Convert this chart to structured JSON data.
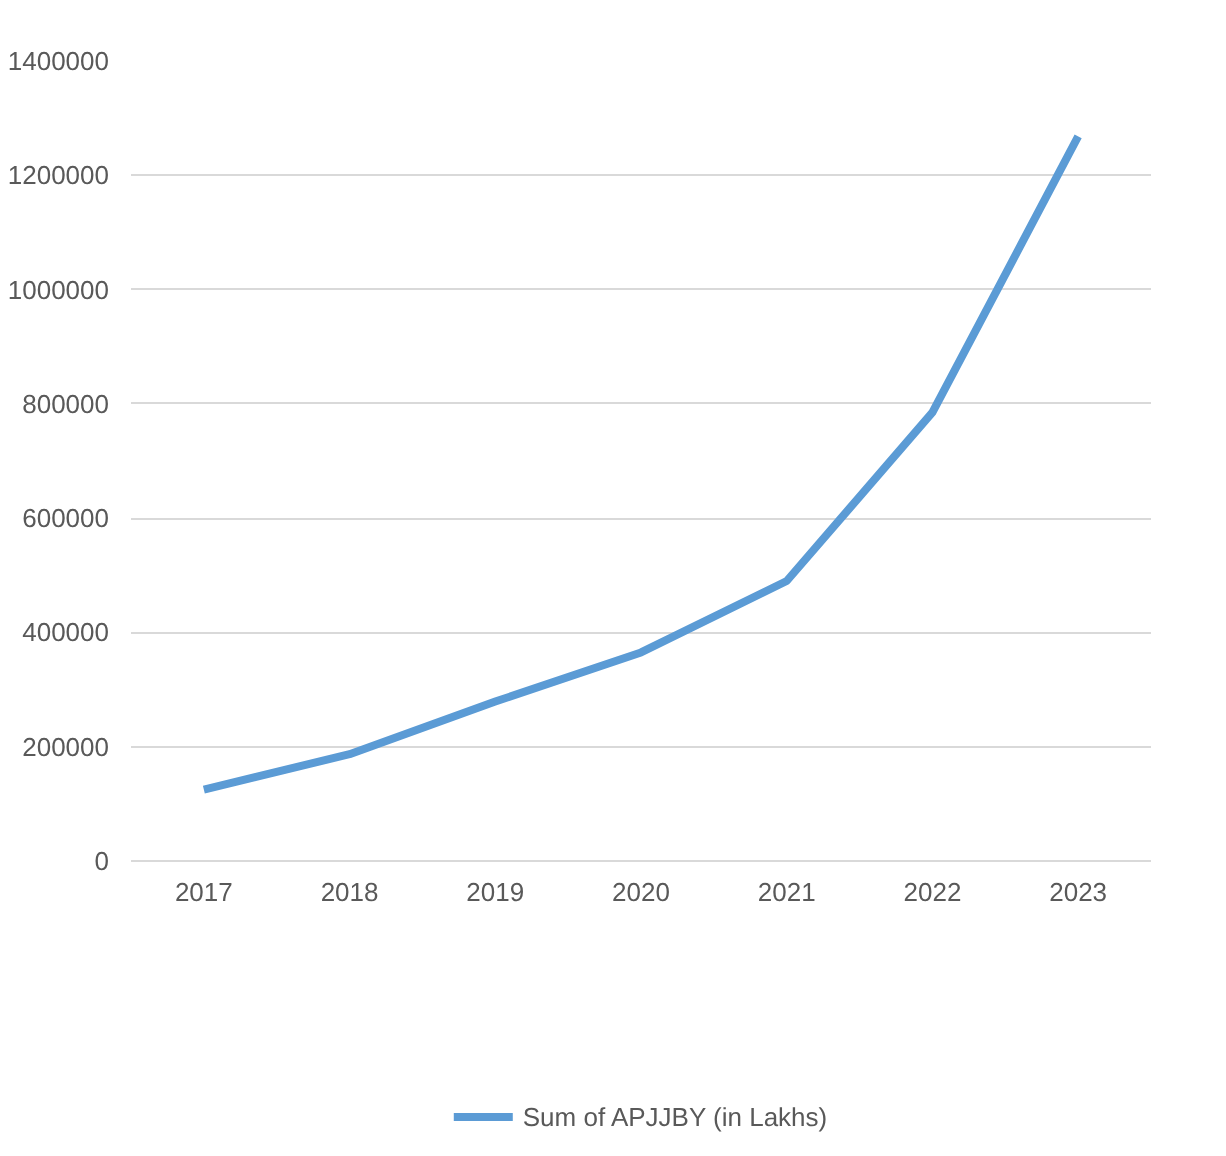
{
  "chart_data": {
    "type": "line",
    "categories": [
      "2017",
      "2018",
      "2019",
      "2020",
      "2021",
      "2022",
      "2023"
    ],
    "series": [
      {
        "name": "Sum of APJJBY (in Lakhs)",
        "color": "#5b9bd5",
        "values": [
          125000,
          187000,
          279000,
          365000,
          490000,
          785000,
          1268000
        ]
      }
    ],
    "ylim": [
      0,
      1400000
    ],
    "yticks": [
      0,
      200000,
      400000,
      600000,
      800000,
      1000000,
      1200000,
      1400000
    ],
    "grid": "y",
    "legend": "bottom",
    "marker": "none",
    "line_style": "solid"
  }
}
